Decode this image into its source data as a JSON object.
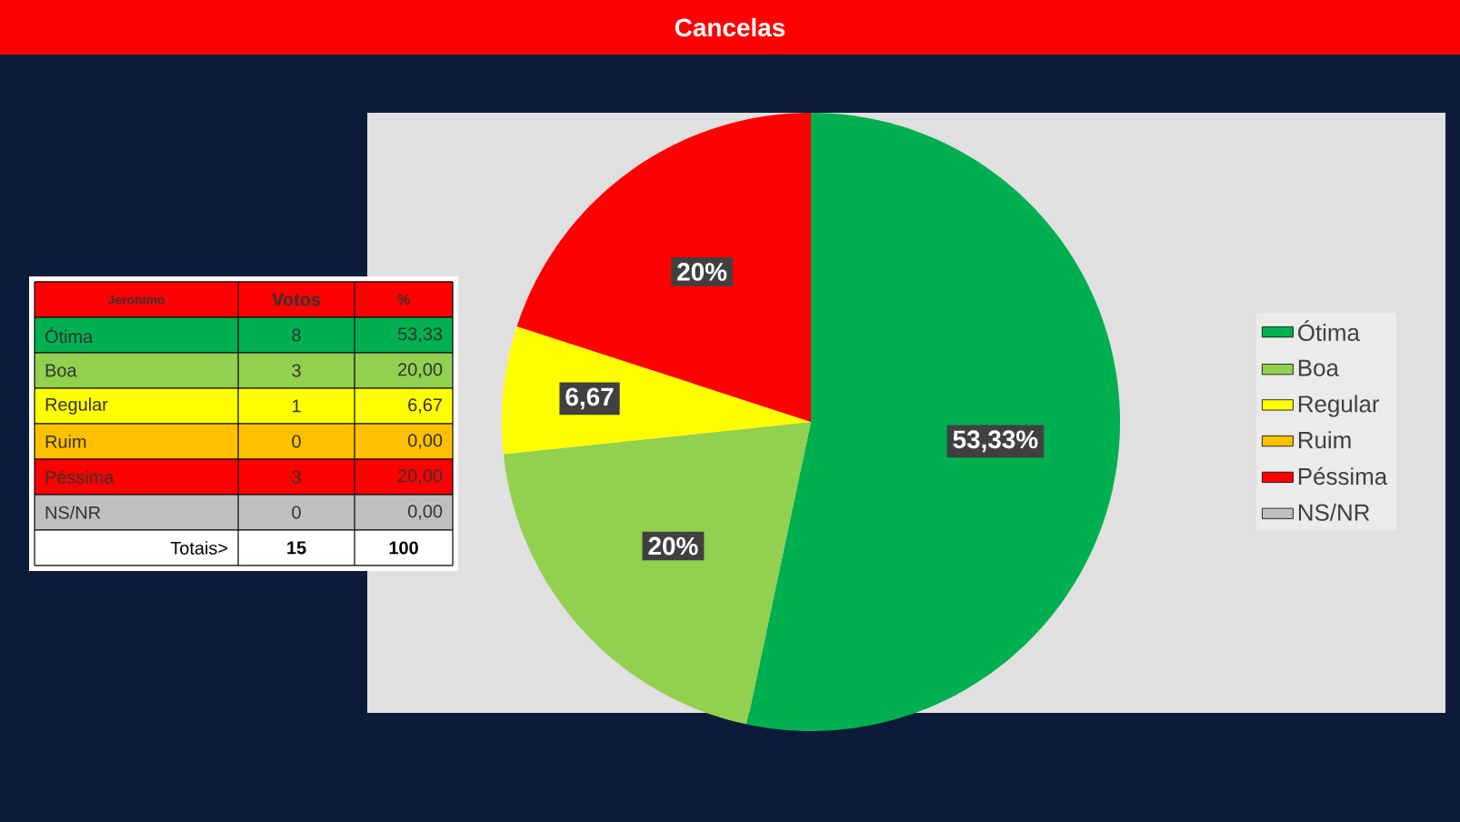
{
  "chart_data": [
    {
      "type": "other",
      "title": "Jeronimo",
      "categories": [
        "Ótima",
        "Boa",
        "Regular",
        "Ruim",
        "Péssima",
        "NS/NR"
      ],
      "colors": [
        "#00b050",
        "#92d050",
        "#ffff00",
        "#ffc000",
        "#ff0000",
        "#bfbfbf"
      ],
      "series": [
        {
          "name": "Votos",
          "values": [
            8,
            3,
            1,
            0,
            3,
            0
          ],
          "colors": [
            "#00b050",
            "#92d050",
            "#ffff00",
            "#ffc000",
            "#ff0000",
            "#bfbfbf"
          ]
        },
        {
          "name": "%",
          "colors": [
            "#00b050",
            "#92d050",
            "#ffff00",
            "#ffc000",
            "#ff0000",
            "#bfbfbf"
          ],
          "values": [
            53.33,
            20,
            6.67,
            0,
            20,
            0
          ],
          "value_labels": [
            "53,33",
            "20,00",
            "6,67",
            "0,00",
            "20,00",
            "0,00"
          ]
        }
      ],
      "data_labels": true,
      "totals": [
        "15",
        "100"
      ],
      "annotations": [
        "Totais>"
      ]
    },
    {
      "type": "pie",
      "title": "Cancelas",
      "categories": [
        "Ótima",
        "Boa",
        "Regular",
        "Ruim",
        "Péssima",
        "NS/NR"
      ],
      "values": [
        53.33,
        20,
        6.67,
        0,
        20,
        0
      ],
      "colors": [
        "#00b050",
        "#92d050",
        "#ffff00",
        "#ffc000",
        "#ff0000",
        "#bfbfbf"
      ],
      "value_labels": [
        "53,33%",
        "20%",
        "6,67",
        null,
        "20%",
        null
      ],
      "legend": "right"
    }
  ]
}
